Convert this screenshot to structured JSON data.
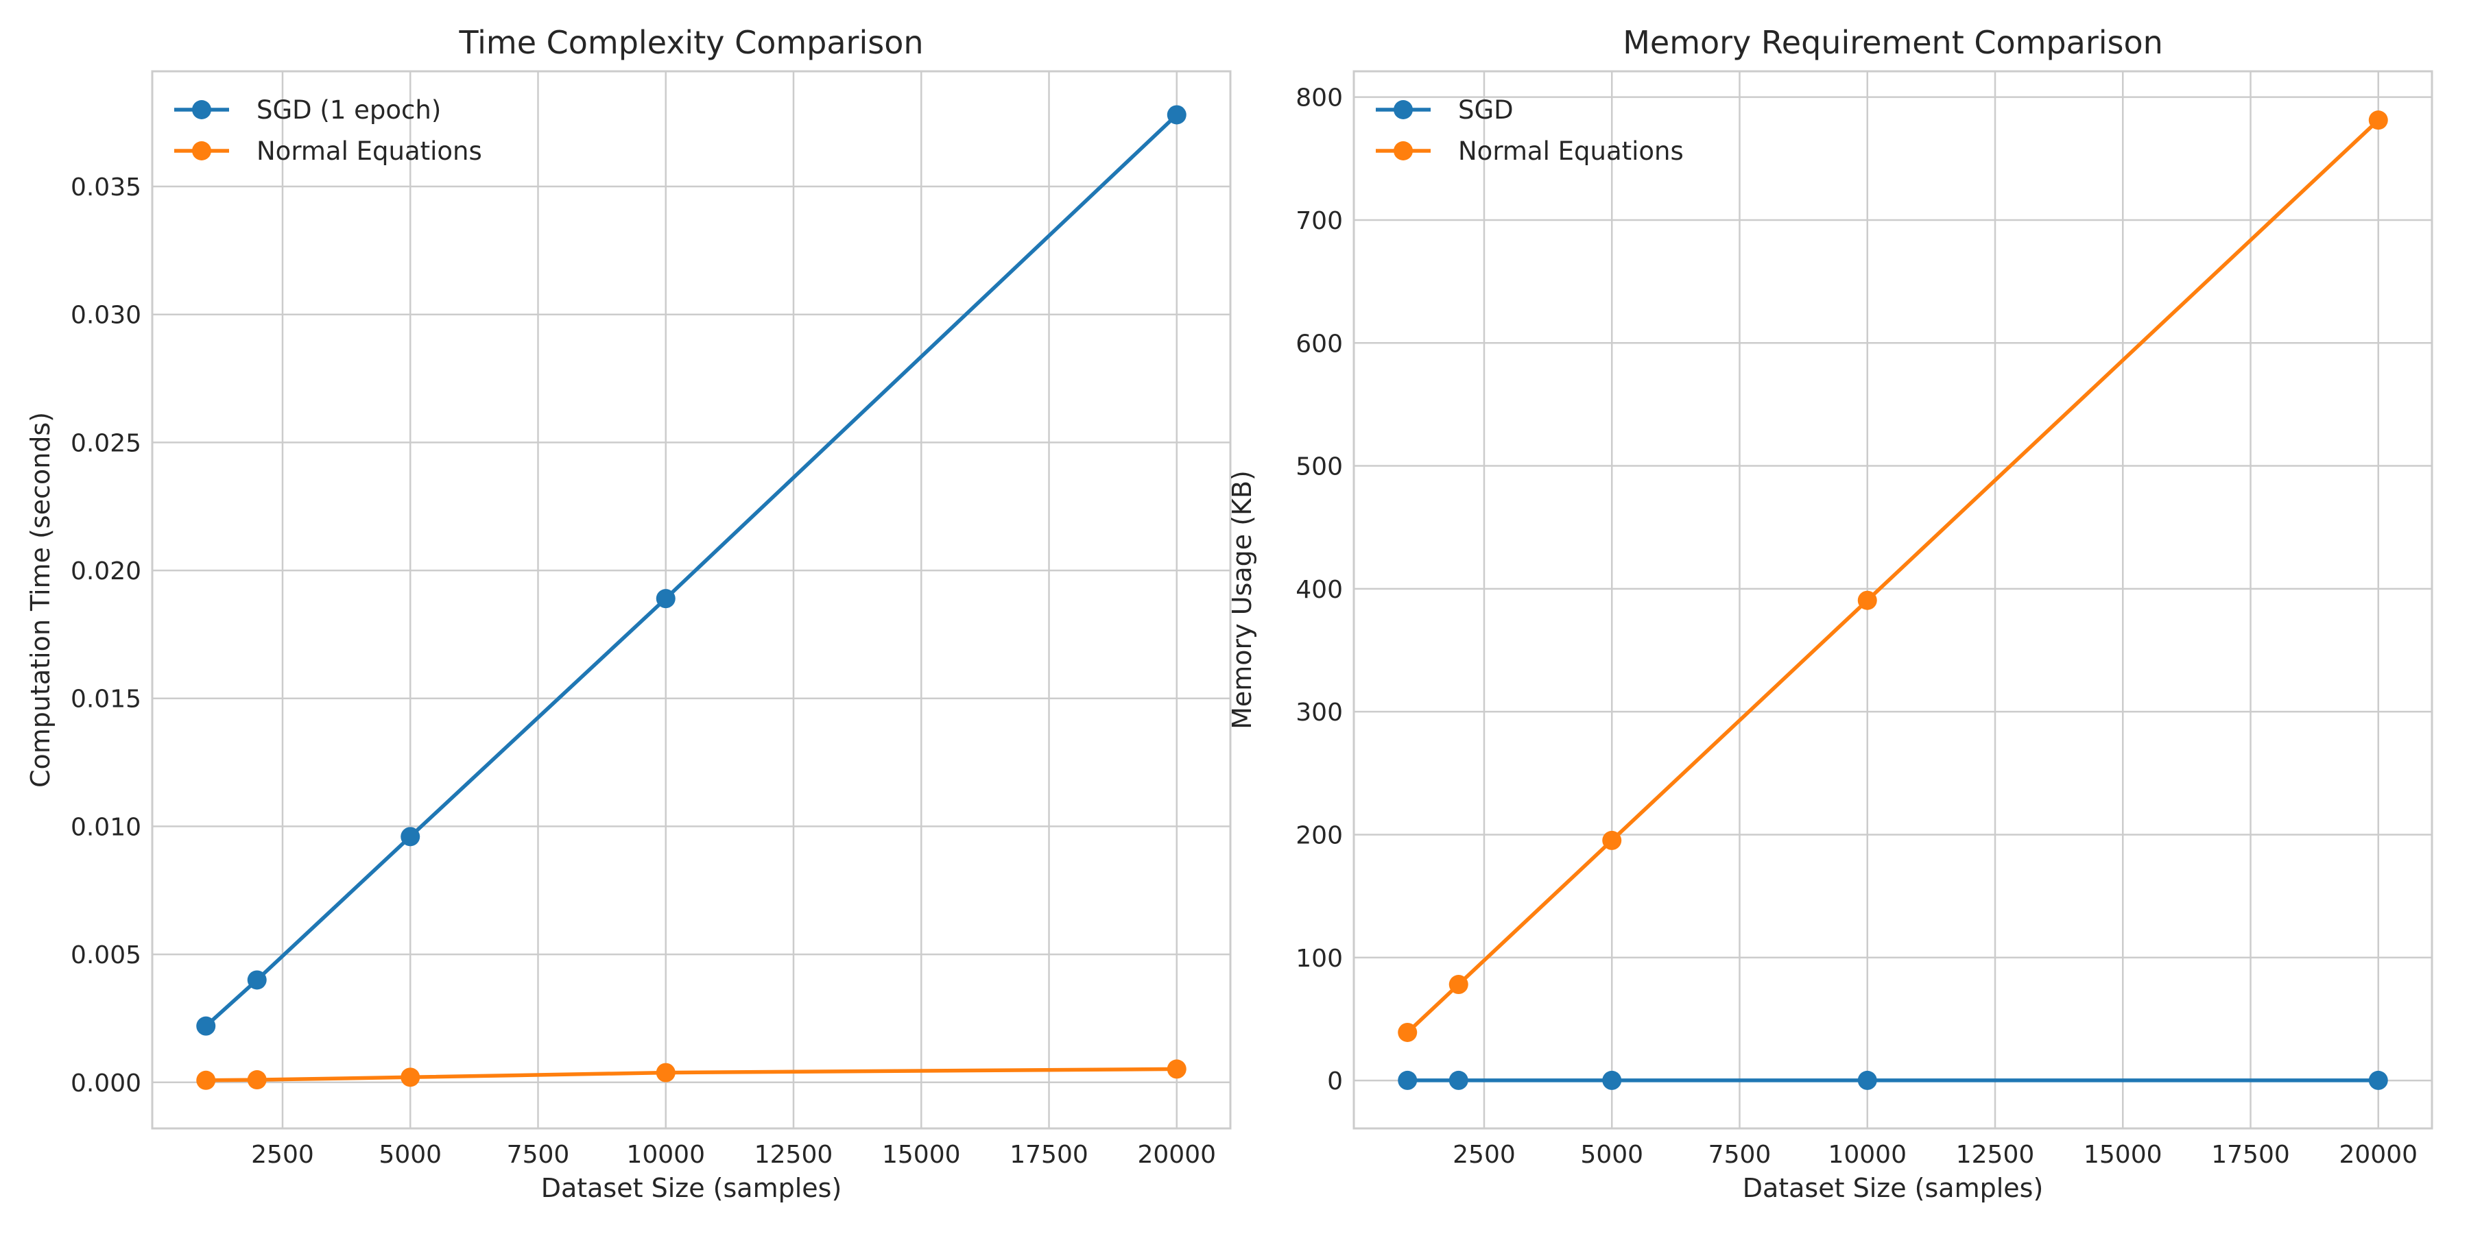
{
  "chart_data": [
    {
      "type": "line",
      "title": "Time Complexity Comparison",
      "xlabel": "Dataset Size (samples)",
      "ylabel": "Computation Time (seconds)",
      "x": [
        1000,
        2000,
        5000,
        10000,
        20000
      ],
      "xlim": [
        -50,
        21050
      ],
      "ylim": [
        -0.0018,
        0.0395
      ],
      "xticks": [
        2500,
        5000,
        7500,
        10000,
        12500,
        15000,
        17500,
        20000
      ],
      "yticks": [
        0.0,
        0.005,
        0.01,
        0.015,
        0.02,
        0.025,
        0.03,
        0.035
      ],
      "ytick_labels": [
        "0.000",
        "0.005",
        "0.010",
        "0.015",
        "0.020",
        "0.025",
        "0.030",
        "0.035"
      ],
      "grid": true,
      "legend": "top-left",
      "series": [
        {
          "name": "SGD (1 epoch)",
          "color": "#1f77b4",
          "values": [
            0.0022,
            0.004,
            0.0096,
            0.0189,
            0.0378
          ]
        },
        {
          "name": "Normal Equations",
          "color": "#ff7f0e",
          "values": [
            8e-05,
            0.0001,
            0.0002,
            0.00038,
            0.00052
          ]
        }
      ]
    },
    {
      "type": "line",
      "title": "Memory Requirement Comparison",
      "xlabel": "Dataset Size (samples)",
      "ylabel": "Memory Usage (KB)",
      "x": [
        1000,
        2000,
        5000,
        10000,
        20000
      ],
      "xlim": [
        -50,
        21050
      ],
      "ylim": [
        -39,
        821
      ],
      "xticks": [
        2500,
        5000,
        7500,
        10000,
        12500,
        15000,
        17500,
        20000
      ],
      "yticks": [
        0,
        100,
        200,
        300,
        400,
        500,
        600,
        700,
        800
      ],
      "ytick_labels": [
        "0",
        "100",
        "200",
        "300",
        "400",
        "500",
        "600",
        "700",
        "800"
      ],
      "grid": true,
      "legend": "top-left",
      "series": [
        {
          "name": "SGD",
          "color": "#1f77b4",
          "values": [
            0.1,
            0.1,
            0.1,
            0.1,
            0.1
          ]
        },
        {
          "name": "Normal Equations",
          "color": "#ff7f0e",
          "values": [
            39.1,
            78.1,
            195.3,
            390.6,
            781.3
          ]
        }
      ]
    }
  ]
}
